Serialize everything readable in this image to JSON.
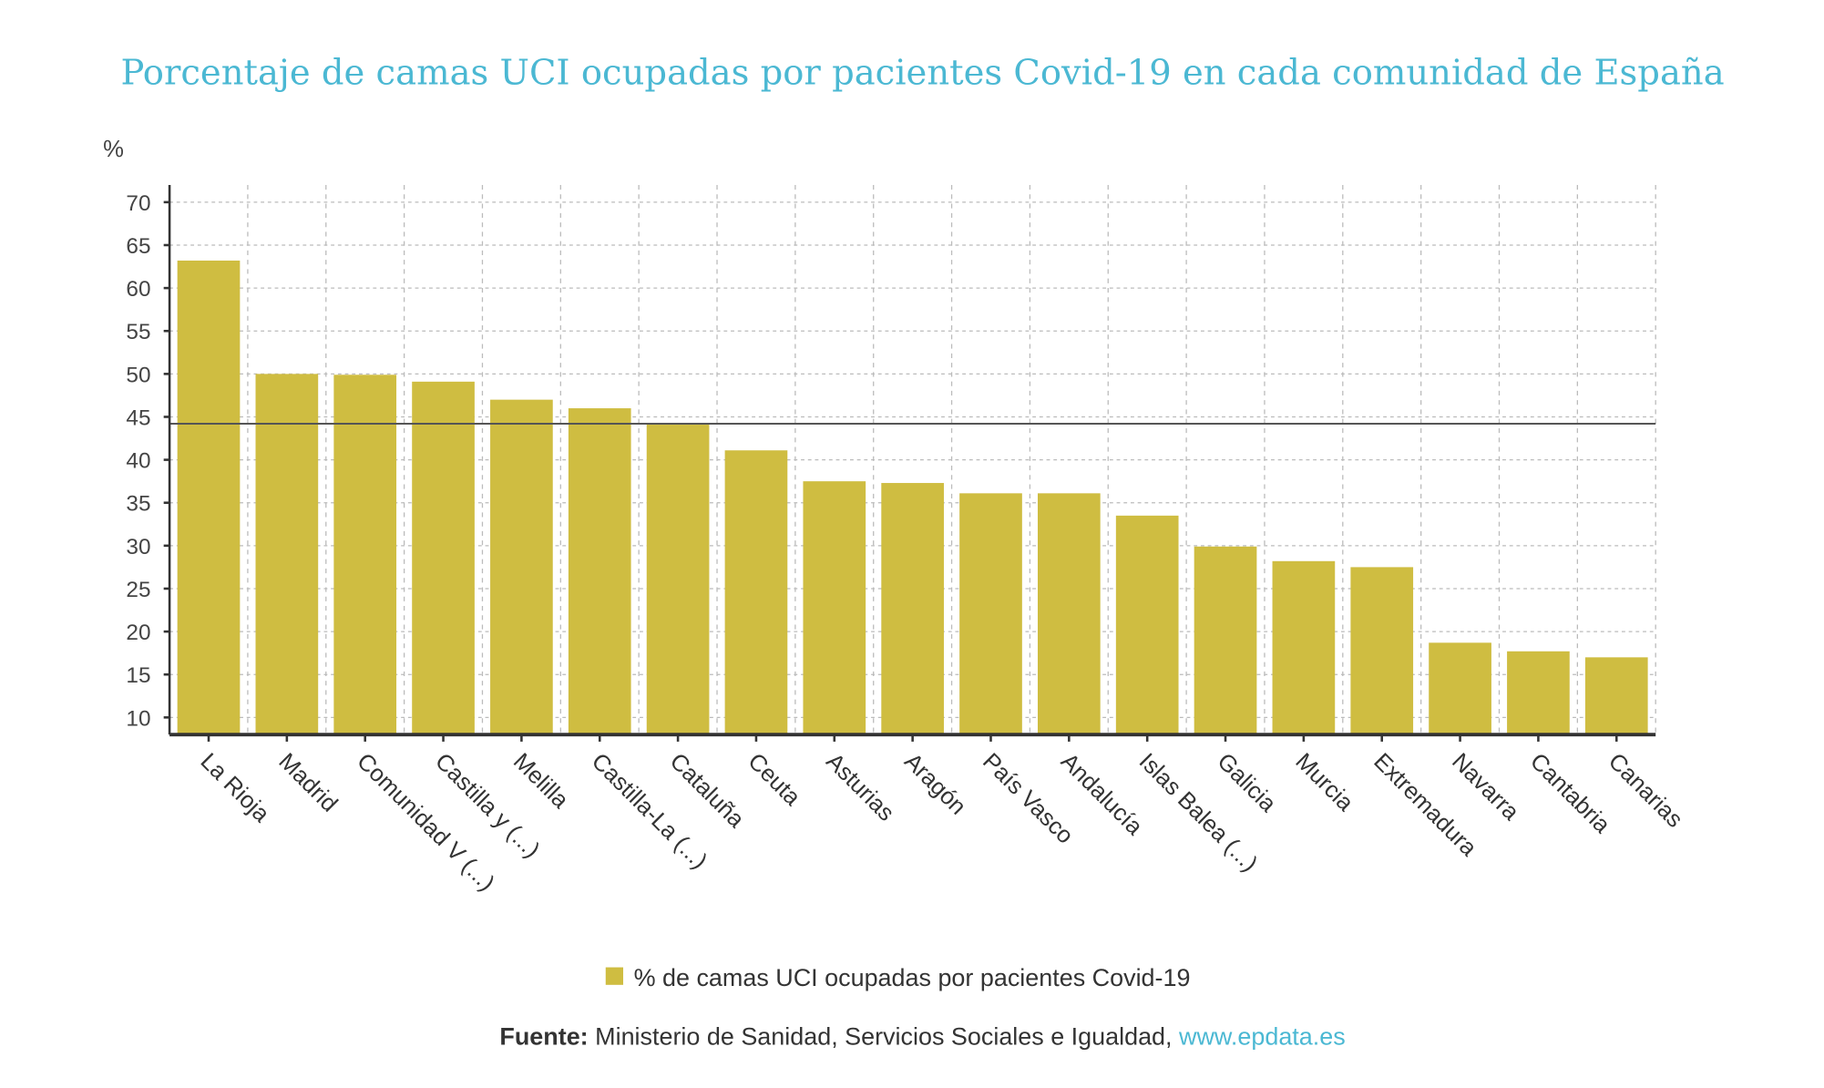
{
  "chart_data": {
    "type": "bar",
    "title": "Porcentaje de camas UCI ocupadas por pacientes Covid-19 en cada comunidad de España",
    "ylabel": "%",
    "xlabel": "",
    "ylim": [
      8,
      72
    ],
    "yticks": [
      10,
      15,
      20,
      25,
      30,
      35,
      40,
      45,
      50,
      55,
      60,
      65,
      70
    ],
    "grid": true,
    "legend_position": "bottom",
    "categories": [
      "La Rioja",
      "Madrid",
      "Comunidad V (...)",
      "Castilla y (...)",
      "Melilla",
      "Castilla-La (...)",
      "Cataluña",
      "Ceuta",
      "Asturias",
      "Aragón",
      "País Vasco",
      "Andalucía",
      "Islas Balea (...)",
      "Galicia",
      "Murcia",
      "Extremadura",
      "Navarra",
      "Cantabria",
      "Canarias"
    ],
    "series": [
      {
        "name": "% de camas UCI ocupadas por pacientes Covid-19",
        "color": "#cfbd41",
        "values": [
          63.2,
          50.0,
          49.9,
          49.1,
          47.0,
          46.0,
          44.1,
          41.1,
          37.5,
          37.3,
          36.1,
          36.1,
          33.5,
          29.9,
          28.2,
          27.5,
          18.7,
          17.7,
          17.0
        ]
      }
    ],
    "reference_line": {
      "value": 44.2,
      "color": "#555555"
    }
  },
  "colors": {
    "title": "#4bb8d3",
    "bar": "#cfbd41",
    "link": "#4bb8d3"
  },
  "footer": {
    "source_label": "Fuente:",
    "source_text": " Ministerio de Sanidad, Servicios Sociales e Igualdad, ",
    "link_text": "www.epdata.es"
  }
}
